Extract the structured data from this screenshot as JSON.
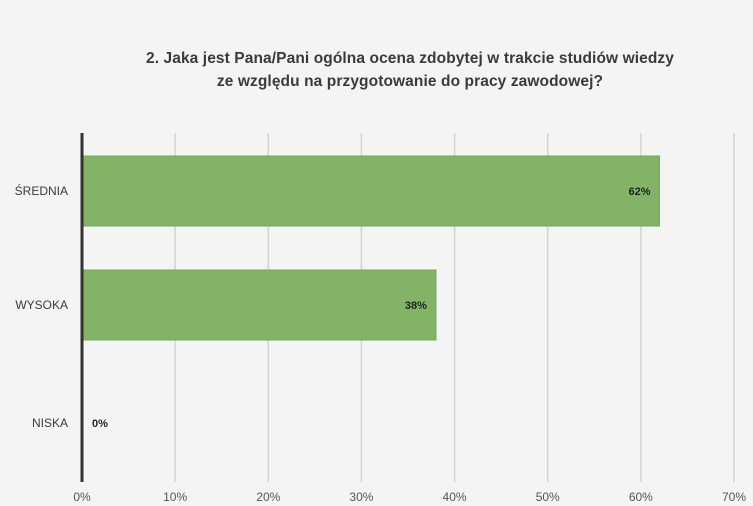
{
  "chart_data": {
    "type": "bar",
    "orientation": "horizontal",
    "title_lines": [
      "2. Jaka jest Pana/Pani ogólna ocena zdobytej w trakcie studiów wiedzy",
      "ze względu na przygotowanie do pracy zawodowej?"
    ],
    "categories": [
      "ŚREDNIA",
      "WYSOKA",
      "NISKA"
    ],
    "values": [
      62,
      38,
      0
    ],
    "data_labels": [
      "62%",
      "38%",
      "0%"
    ],
    "xlim": [
      0,
      70
    ],
    "xticks": [
      0,
      10,
      20,
      30,
      40,
      50,
      60,
      70
    ],
    "xtick_labels": [
      "0%",
      "10%",
      "20%",
      "30%",
      "40%",
      "50%",
      "60%",
      "70%"
    ],
    "grid": true,
    "legend": "none",
    "bar_color": "#82b366",
    "bar_stroke_color": "#74a85a"
  }
}
